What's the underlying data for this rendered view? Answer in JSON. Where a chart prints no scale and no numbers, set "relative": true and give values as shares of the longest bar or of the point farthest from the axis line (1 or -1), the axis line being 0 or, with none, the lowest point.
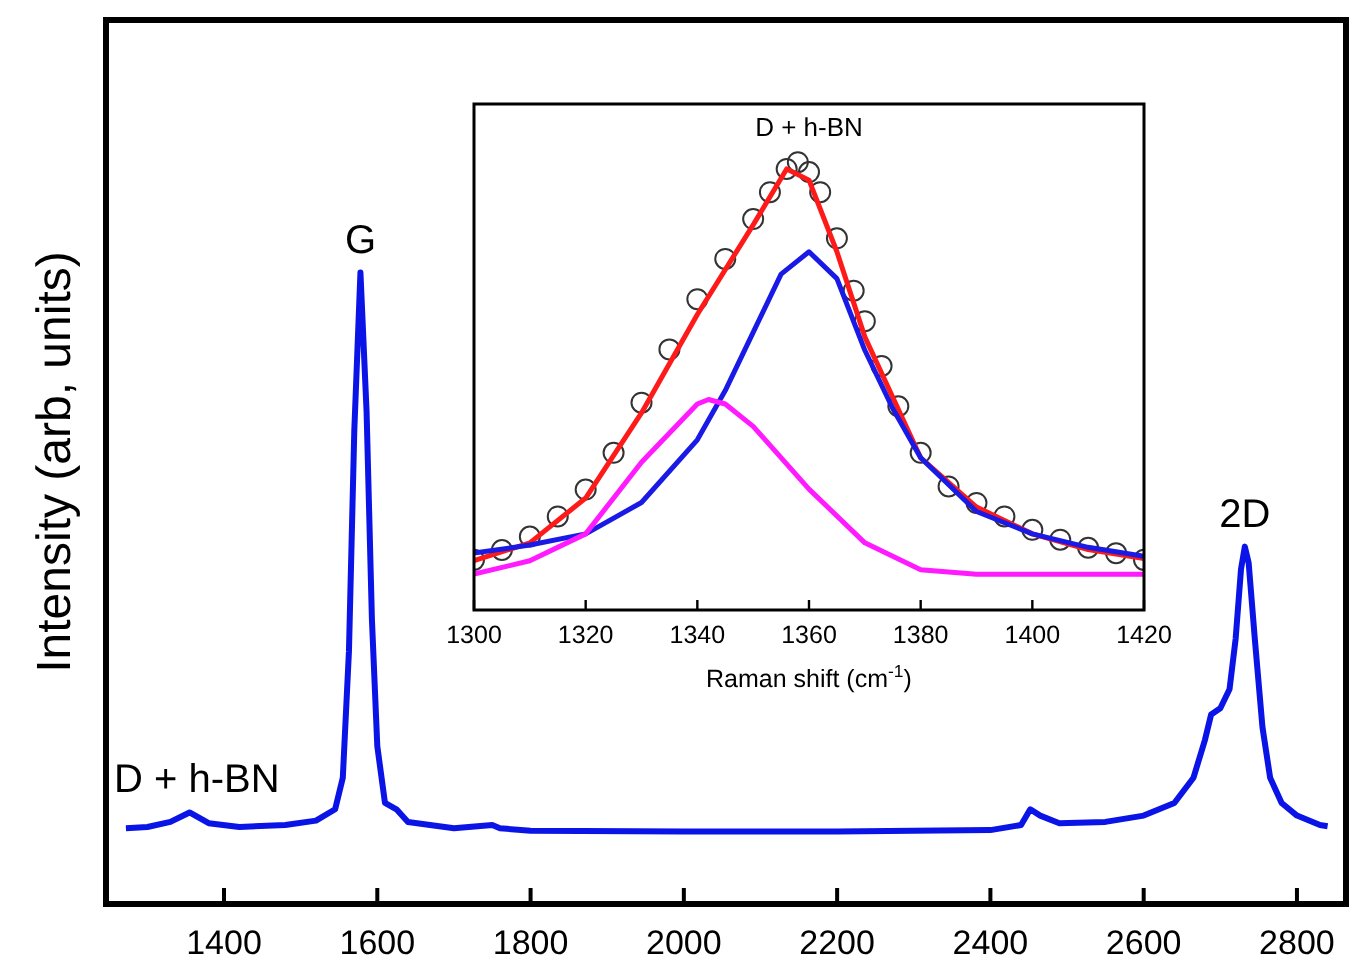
{
  "chart_data": [
    {
      "type": "line",
      "relative": true,
      "ylabel": "Intensity (arb, units)",
      "xlim": [
        1246,
        2864
      ],
      "xticks": [
        1400,
        1600,
        1800,
        2000,
        2200,
        2400,
        2600,
        2800
      ],
      "grid": false,
      "annotations": [
        {
          "text": "G",
          "x": 1578,
          "y": 1.0
        },
        {
          "text": "2D",
          "x": 2732,
          "y": 0.566
        },
        {
          "text": "D + h-BN",
          "x": 1355,
          "y": 0.145
        }
      ],
      "series": [
        {
          "color": "#0a14e6",
          "x": [
            1272,
            1300,
            1330,
            1355,
            1380,
            1420,
            1480,
            1520,
            1545,
            1555,
            1563,
            1570,
            1578,
            1586,
            1593,
            1600,
            1610,
            1625,
            1640,
            1700,
            1750,
            1760,
            1800,
            2000,
            2200,
            2400,
            2440,
            2452,
            2465,
            2490,
            2550,
            2600,
            2640,
            2665,
            2680,
            2688,
            2700,
            2712,
            2720,
            2727,
            2732,
            2737,
            2745,
            2755,
            2765,
            2780,
            2800,
            2830,
            2840
          ],
          "values": [
            0.12,
            0.122,
            0.13,
            0.145,
            0.128,
            0.122,
            0.125,
            0.132,
            0.15,
            0.2,
            0.4,
            0.75,
            1.0,
            0.78,
            0.45,
            0.25,
            0.16,
            0.15,
            0.13,
            0.12,
            0.125,
            0.12,
            0.116,
            0.115,
            0.115,
            0.117,
            0.125,
            0.15,
            0.14,
            0.128,
            0.13,
            0.14,
            0.16,
            0.2,
            0.26,
            0.3,
            0.31,
            0.34,
            0.42,
            0.53,
            0.566,
            0.54,
            0.42,
            0.28,
            0.2,
            0.16,
            0.14,
            0.125,
            0.123
          ]
        }
      ]
    },
    {
      "type": "line",
      "relative": true,
      "title": "D + h-BN",
      "xlabel": "Raman shift (cm$^{-1}$)",
      "xlim": [
        1300,
        1420
      ],
      "xticks": [
        1300,
        1320,
        1340,
        1360,
        1380,
        1400,
        1420
      ],
      "grid": false,
      "series": [
        {
          "type": "scatter",
          "marker": "circle",
          "color": "#333333",
          "x": [
            1300,
            1305,
            1310,
            1315,
            1320,
            1325,
            1330,
            1335,
            1340,
            1345,
            1350,
            1353,
            1356,
            1358,
            1360,
            1362,
            1365,
            1368,
            1370,
            1373,
            1376,
            1380,
            1385,
            1390,
            1395,
            1400,
            1405,
            1410,
            1415,
            1420
          ],
          "values": [
            0.112,
            0.134,
            0.164,
            0.209,
            0.269,
            0.351,
            0.463,
            0.582,
            0.694,
            0.784,
            0.873,
            0.933,
            0.985,
            1.0,
            0.978,
            0.933,
            0.83,
            0.713,
            0.645,
            0.545,
            0.455,
            0.351,
            0.276,
            0.239,
            0.209,
            0.179,
            0.157,
            0.139,
            0.127,
            0.112
          ]
        },
        {
          "color": "#ff1a1a",
          "x": [
            1300,
            1310,
            1320,
            1330,
            1340,
            1350,
            1356,
            1360,
            1365,
            1370,
            1380,
            1390,
            1400,
            1410,
            1420
          ],
          "values": [
            0.11,
            0.15,
            0.25,
            0.44,
            0.66,
            0.86,
            0.985,
            0.96,
            0.8,
            0.61,
            0.34,
            0.23,
            0.17,
            0.135,
            0.115
          ]
        },
        {
          "color": "#1a1ae6",
          "x": [
            1300,
            1310,
            1320,
            1330,
            1340,
            1345,
            1350,
            1355,
            1360,
            1365,
            1370,
            1375,
            1380,
            1390,
            1400,
            1410,
            1420
          ],
          "values": [
            0.127,
            0.145,
            0.17,
            0.24,
            0.38,
            0.49,
            0.62,
            0.75,
            0.8,
            0.74,
            0.58,
            0.45,
            0.34,
            0.22,
            0.17,
            0.14,
            0.12
          ]
        },
        {
          "color": "#ff1aff",
          "x": [
            1300,
            1310,
            1320,
            1330,
            1340,
            1342,
            1345,
            1350,
            1360,
            1370,
            1380,
            1390,
            1420
          ],
          "values": [
            0.08,
            0.11,
            0.17,
            0.33,
            0.46,
            0.47,
            0.46,
            0.41,
            0.27,
            0.15,
            0.09,
            0.08,
            0.08
          ]
        }
      ]
    }
  ]
}
